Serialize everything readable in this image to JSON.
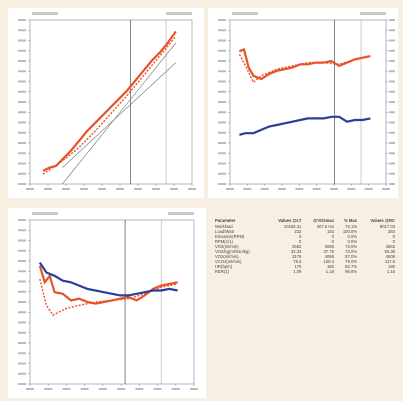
{
  "colors": {
    "red": "#e8522a",
    "blue": "#2c3f98",
    "grid": "#aaaaaa",
    "axis": "#888888",
    "panel_bg": "#ffffff"
  },
  "chart_data": [
    {
      "type": "line",
      "title": "",
      "xlabel": "",
      "ylabel": "",
      "xlim": [
        0,
        1
      ],
      "ylim": [
        0,
        1
      ],
      "vlines": [
        0.62,
        0.84
      ],
      "series": [
        {
          "color": "#e8522a",
          "style": "solid",
          "x": [
            0.08,
            0.12,
            0.16,
            0.2,
            0.25,
            0.3,
            0.35,
            0.4,
            0.45,
            0.5,
            0.55,
            0.6,
            0.65,
            0.7,
            0.75,
            0.8,
            0.85,
            0.9
          ],
          "y": [
            0.08,
            0.1,
            0.11,
            0.15,
            0.2,
            0.26,
            0.32,
            0.37,
            0.42,
            0.47,
            0.52,
            0.57,
            0.63,
            0.69,
            0.75,
            0.8,
            0.86,
            0.93
          ]
        },
        {
          "color": "#e8522a",
          "style": "dashed",
          "x": [
            0.08,
            0.2,
            0.3,
            0.4,
            0.5,
            0.6,
            0.7,
            0.8,
            0.9
          ],
          "y": [
            0.06,
            0.14,
            0.22,
            0.32,
            0.43,
            0.54,
            0.66,
            0.78,
            0.9
          ]
        },
        {
          "color": "#777777",
          "style": "thin",
          "x": [
            0.2,
            0.9
          ],
          "y": [
            0.0,
            0.86
          ]
        },
        {
          "color": "#777777",
          "style": "thin",
          "x": [
            0.2,
            0.9
          ],
          "y": [
            0.1,
            0.74
          ]
        }
      ]
    },
    {
      "type": "line",
      "title": "",
      "xlabel": "",
      "ylabel": "",
      "xlim": [
        0,
        1
      ],
      "ylim": [
        0,
        1
      ],
      "vlines": [
        0.67,
        0.84
      ],
      "series": [
        {
          "color": "#e8522a",
          "style": "solid",
          "x": [
            0.06,
            0.09,
            0.12,
            0.15,
            0.2,
            0.25,
            0.3,
            0.35,
            0.4,
            0.45,
            0.5,
            0.55,
            0.6,
            0.65,
            0.7,
            0.75,
            0.8,
            0.85,
            0.9
          ],
          "y": [
            0.81,
            0.82,
            0.71,
            0.66,
            0.64,
            0.67,
            0.69,
            0.7,
            0.71,
            0.73,
            0.73,
            0.74,
            0.74,
            0.75,
            0.72,
            0.74,
            0.76,
            0.77,
            0.78
          ]
        },
        {
          "color": "#e8522a",
          "style": "dashed",
          "x": [
            0.06,
            0.1,
            0.15,
            0.2,
            0.3,
            0.4,
            0.5,
            0.6,
            0.7,
            0.8,
            0.9
          ],
          "y": [
            0.79,
            0.72,
            0.62,
            0.66,
            0.7,
            0.72,
            0.74,
            0.74,
            0.73,
            0.76,
            0.78
          ]
        },
        {
          "color": "#2c3f98",
          "style": "solid",
          "x": [
            0.06,
            0.1,
            0.15,
            0.2,
            0.25,
            0.3,
            0.35,
            0.4,
            0.45,
            0.5,
            0.55,
            0.6,
            0.65,
            0.7,
            0.75,
            0.8,
            0.85,
            0.9
          ],
          "y": [
            0.3,
            0.31,
            0.31,
            0.33,
            0.35,
            0.36,
            0.37,
            0.38,
            0.39,
            0.4,
            0.4,
            0.4,
            0.41,
            0.41,
            0.38,
            0.39,
            0.39,
            0.4
          ]
        }
      ]
    },
    {
      "type": "line",
      "title": "",
      "xlabel": "",
      "ylabel": "",
      "xlim": [
        0,
        1
      ],
      "ylim": [
        0,
        1
      ],
      "vlines": [
        0.58,
        0.8
      ],
      "series": [
        {
          "color": "#e8522a",
          "style": "solid",
          "x": [
            0.06,
            0.09,
            0.12,
            0.15,
            0.2,
            0.25,
            0.3,
            0.35,
            0.4,
            0.45,
            0.5,
            0.55,
            0.6,
            0.65,
            0.7,
            0.75,
            0.8,
            0.85,
            0.9
          ],
          "y": [
            0.72,
            0.62,
            0.66,
            0.56,
            0.55,
            0.51,
            0.52,
            0.5,
            0.49,
            0.5,
            0.51,
            0.52,
            0.53,
            0.51,
            0.54,
            0.58,
            0.6,
            0.61,
            0.62
          ]
        },
        {
          "color": "#e8522a",
          "style": "dashed",
          "x": [
            0.06,
            0.1,
            0.14,
            0.18,
            0.22,
            0.3,
            0.4,
            0.5,
            0.6,
            0.7,
            0.8,
            0.9
          ],
          "y": [
            0.64,
            0.48,
            0.42,
            0.44,
            0.46,
            0.48,
            0.5,
            0.51,
            0.52,
            0.55,
            0.59,
            0.61
          ]
        },
        {
          "color": "#2c3f98",
          "style": "solid",
          "x": [
            0.06,
            0.1,
            0.15,
            0.2,
            0.25,
            0.3,
            0.35,
            0.4,
            0.45,
            0.5,
            0.55,
            0.6,
            0.65,
            0.7,
            0.75,
            0.8,
            0.85,
            0.9
          ],
          "y": [
            0.74,
            0.68,
            0.66,
            0.63,
            0.62,
            0.6,
            0.58,
            0.57,
            0.56,
            0.55,
            0.54,
            0.54,
            0.55,
            0.56,
            0.57,
            0.57,
            0.58,
            0.57
          ]
        }
      ]
    },
    {
      "type": "table",
      "columns": [
        "Parameter",
        "Values @LT",
        "@VO2max",
        "% Max",
        "Values @RC"
      ],
      "rows": [
        [
          "Workload",
          "10155.31",
          "307.0 ms",
          "73.1%",
          "9017.03"
        ],
        [
          "Load/Watt",
          "232",
          "193",
          "100.0%",
          "284"
        ],
        [
          "Elevation(RPM)",
          "0",
          "0",
          "0.0%",
          "0"
        ],
        [
          "RPM(1/1)",
          "0",
          "0",
          "0.0%",
          "0"
        ],
        [
          "VO2(ml/min)",
          "2562",
          "3085",
          "73.0%",
          "4563"
        ],
        [
          "VO2/kg(ml/min/kg)",
          "32.33",
          "37.78",
          "73.0%",
          "55.36"
        ],
        [
          "VO2(ml/min)",
          "3179",
          "4065",
          "87.0%",
          "4608"
        ],
        [
          "VCO2(ml/min)",
          "79.3",
          "100.4",
          "79.0%",
          "117.6"
        ],
        [
          "HR(bpm)",
          "170",
          "150",
          "82.7%",
          "180"
        ],
        [
          "RER(1)",
          "1.09",
          "1.18",
          "96.6%",
          "1.16"
        ]
      ]
    }
  ]
}
